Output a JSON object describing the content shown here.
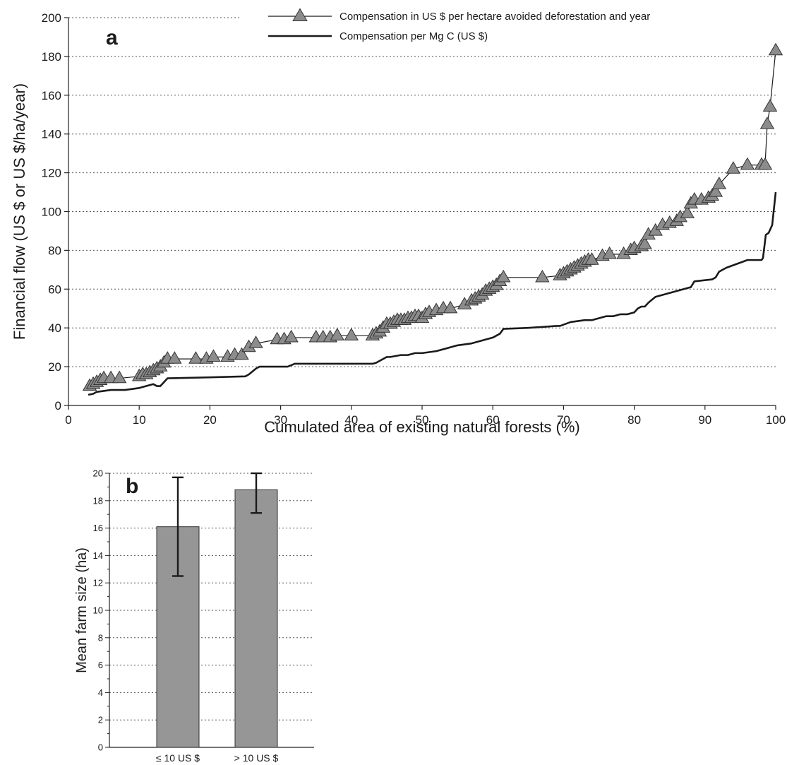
{
  "chart_data": [
    {
      "type": "line",
      "panel_label": "a",
      "xlabel": "Cumulated area of existing natural forests (%)",
      "ylabel": "Financial flow (US $ or US $/ha/year)",
      "xlim": [
        0,
        100
      ],
      "ylim": [
        0,
        200
      ],
      "x_ticks": [
        0,
        10,
        20,
        30,
        40,
        50,
        60,
        70,
        80,
        90,
        100
      ],
      "y_ticks": [
        0,
        20,
        40,
        60,
        80,
        100,
        120,
        140,
        160,
        180,
        200
      ],
      "grid": "horizontal dotted",
      "legend_position": "top-right",
      "series": [
        {
          "name": "Compensation in US $ per hectare avoided deforestation and year",
          "marker": "triangle",
          "color": "#8c8c8c",
          "x": [
            3,
            3.5,
            4,
            4.5,
            5,
            6,
            7.2,
            10,
            10.5,
            11,
            11.5,
            12,
            12.5,
            13,
            13.5,
            14,
            15,
            18,
            19.5,
            20.5,
            22.5,
            23.5,
            24.5,
            25.5,
            26.5,
            29.5,
            30.5,
            31.5,
            35,
            36,
            37,
            38,
            40,
            43,
            43.5,
            44,
            44.5,
            45,
            45.5,
            46,
            46.5,
            47,
            47.5,
            48,
            48.5,
            49,
            49.5,
            50,
            50.5,
            51,
            52,
            53,
            54,
            56,
            57,
            57.5,
            58,
            58.5,
            59,
            59.5,
            60,
            60.5,
            61,
            61.5,
            67,
            69.5,
            70,
            70.5,
            71,
            71.5,
            72,
            72.5,
            73,
            73.5,
            74,
            75.5,
            76.5,
            78.5,
            79.5,
            80,
            81,
            81.5,
            82,
            83,
            84,
            85,
            86,
            86.5,
            87.5,
            88,
            88.5,
            89.5,
            90.5,
            91,
            91.5,
            92,
            94,
            96,
            98,
            98.5,
            98.8,
            99.2,
            100
          ],
          "y": [
            10,
            11,
            12,
            13,
            14,
            14,
            14,
            15,
            16,
            16,
            17,
            18,
            19,
            20,
            22,
            24,
            24,
            24,
            24,
            25,
            25,
            26,
            26,
            30,
            32,
            34,
            34,
            35,
            35,
            35,
            35,
            36,
            36,
            36,
            37,
            38,
            40,
            42,
            42,
            43,
            44,
            44,
            44,
            45,
            45,
            46,
            46,
            45,
            47,
            48,
            49,
            50,
            50,
            52,
            54,
            55,
            56,
            57,
            59,
            60,
            61,
            62,
            64,
            66,
            66,
            67,
            68,
            69,
            70,
            71,
            72,
            73,
            74,
            75,
            75,
            77,
            78,
            78,
            80,
            81,
            82,
            83,
            88,
            90,
            93,
            94,
            95,
            97,
            99,
            104,
            106,
            106,
            107,
            108,
            110,
            114,
            122,
            124,
            124,
            124,
            145,
            154,
            183
          ]
        },
        {
          "name": "Compensation per Mg C (US $)",
          "marker": "none",
          "color": "#1a1a1a",
          "x": [
            2.8,
            3.5,
            4,
            5,
            6,
            7,
            8,
            9,
            10,
            11,
            12,
            12.5,
            13,
            14,
            20,
            25,
            25.5,
            26.5,
            27,
            31,
            32,
            43,
            43.5,
            44,
            45,
            45.5,
            47,
            48,
            49,
            50,
            52,
            54,
            55,
            57,
            58,
            59,
            60,
            60.5,
            61,
            61.5,
            65,
            69,
            69.5,
            71,
            73,
            74,
            75,
            76,
            77,
            78,
            79,
            80,
            80.5,
            81,
            81.5,
            82,
            83,
            85,
            86,
            87,
            88,
            88.5,
            91,
            91.5,
            92,
            93,
            96,
            98,
            98.2,
            98.6,
            99,
            99.5,
            100
          ],
          "y": [
            5.5,
            6,
            7,
            7.5,
            8,
            8,
            8,
            8.5,
            9,
            10,
            11,
            10,
            10,
            14,
            14.5,
            15,
            16,
            19,
            20,
            20,
            21.5,
            21.5,
            22,
            23,
            25,
            25,
            26,
            26,
            27,
            27,
            28,
            30,
            31,
            32,
            33,
            34,
            35,
            36,
            37,
            39.5,
            40,
            41,
            41,
            43,
            44,
            44,
            45,
            46,
            46,
            47,
            47,
            48,
            50,
            51,
            51,
            53,
            56,
            58,
            59,
            60,
            61,
            64,
            65,
            66,
            69,
            71,
            75,
            75,
            76,
            88,
            89,
            93,
            110
          ]
        }
      ]
    },
    {
      "type": "bar",
      "panel_label": "b",
      "categories": [
        "≤ 10 US $",
        "> 10 US $"
      ],
      "values": [
        16.1,
        18.8
      ],
      "error": [
        [
          12.5,
          19.7
        ],
        [
          17.1,
          20.0
        ]
      ],
      "color": "#969696",
      "xlabel": "",
      "ylabel": "Mean farm size (ha)",
      "ylim": [
        0,
        20
      ],
      "y_ticks": [
        0,
        2,
        4,
        6,
        8,
        10,
        12,
        14,
        16,
        18,
        20
      ],
      "grid": "horizontal dotted"
    }
  ]
}
